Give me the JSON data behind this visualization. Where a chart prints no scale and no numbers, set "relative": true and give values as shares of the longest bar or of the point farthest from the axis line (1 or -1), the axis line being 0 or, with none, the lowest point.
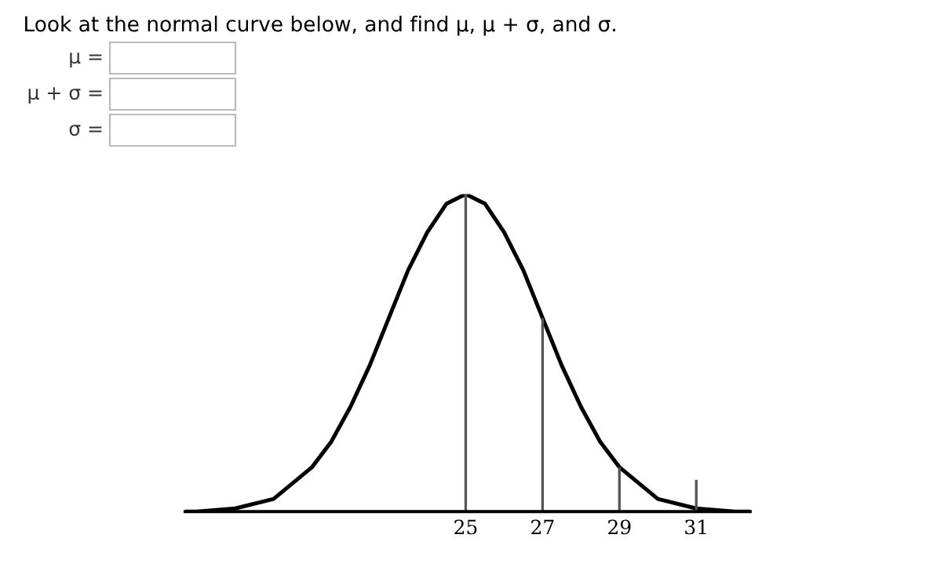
{
  "chart_data": {
    "type": "line",
    "title": "Look at the normal curve below, and find μ, μ + σ, and σ.",
    "annotations": [
      "μ =",
      "μ + σ =",
      "σ ="
    ],
    "relative": true,
    "x": [
      17.7,
      18,
      19,
      20,
      21,
      21.5,
      22,
      22.5,
      23,
      23.5,
      24,
      24.5,
      25,
      25.5,
      26,
      26.5,
      27,
      27.5,
      28,
      28.5,
      29,
      30,
      31,
      32,
      32.4
    ],
    "series": [
      {
        "color": "#000000",
        "values": [
          0,
          0,
          0.01,
          0.04,
          0.14,
          0.22,
          0.33,
          0.46,
          0.61,
          0.76,
          0.88,
          0.97,
          1,
          0.97,
          0.88,
          0.76,
          0.61,
          0.46,
          0.33,
          0.22,
          0.14,
          0.04,
          0.01,
          0,
          0
        ]
      }
    ],
    "xlim": [
      17.7,
      32.4
    ],
    "xticks": [
      25,
      27,
      29,
      31
    ],
    "ref_lines": [
      {
        "axis": "x",
        "value": 25,
        "color": "#555555"
      },
      {
        "axis": "x",
        "value": 27,
        "color": "#555555"
      },
      {
        "axis": "x",
        "value": 29,
        "color": "#555555"
      },
      {
        "axis": "x",
        "value": 31,
        "color": "#555555"
      }
    ],
    "tick_labels": "x",
    "grid": false,
    "legend": false,
    "marker": "none",
    "line_style": "solid"
  }
}
